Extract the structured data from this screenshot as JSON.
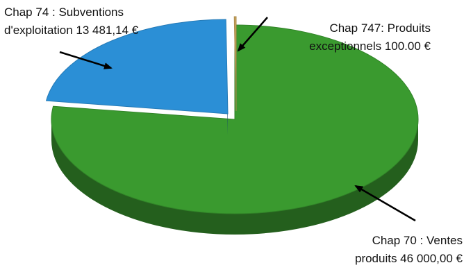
{
  "chart_data": {
    "type": "pie",
    "style": "3d-exploded",
    "slices": [
      {
        "name": "Chap 70 : Ventes produits",
        "value": 46000.0,
        "color": "#3a9a2f",
        "label_lines": [
          "Chap 70 : Ventes",
          "produits  46 000,00 €"
        ]
      },
      {
        "name": "Chap 74 : Subventions d'exploitation",
        "value": 13481.14,
        "color": "#2b8fd6",
        "label_lines": [
          "Chap 74 : Subventions",
          "d'exploitation  13 481,14 €"
        ]
      },
      {
        "name": "Chap 747: Produits exceptionnels",
        "value": 100.0,
        "color": "#c9a35a",
        "label_lines": [
          "Chap 747: Produits",
          "exceptionnels  100.00 €"
        ]
      }
    ],
    "title": "",
    "legend": "none"
  }
}
